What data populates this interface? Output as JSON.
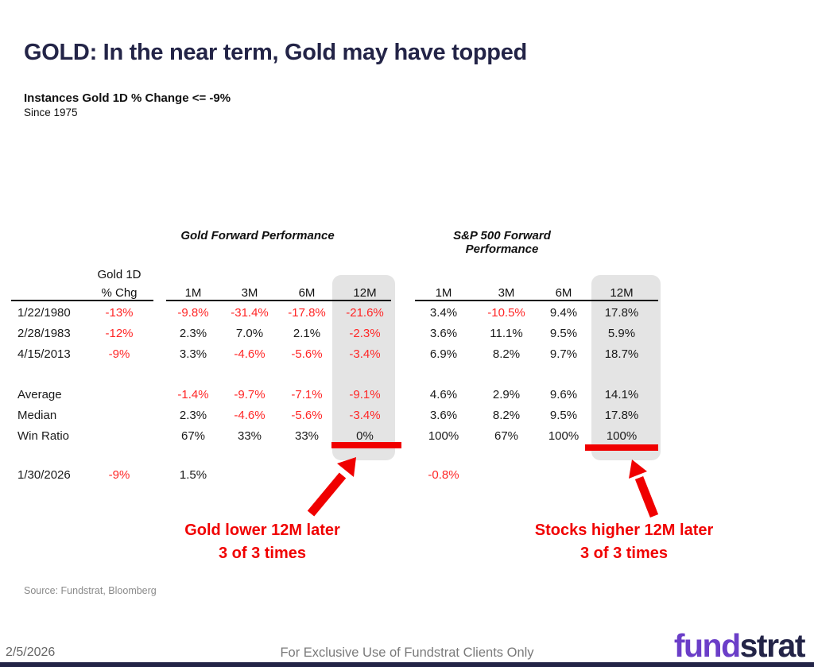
{
  "title": "GOLD: In the near term, Gold may have topped",
  "subtitle": "Instances Gold 1D % Change <= -9%",
  "subtitle2": "Since 1975",
  "table": {
    "corner_header": [
      "Gold 1D",
      "% Chg"
    ],
    "sections": [
      {
        "title": "Gold Forward Performance",
        "columns": [
          "1M",
          "3M",
          "6M",
          "12M"
        ]
      },
      {
        "title": "S&P 500 Forward Performance",
        "columns": [
          "1M",
          "3M",
          "6M",
          "12M"
        ]
      }
    ],
    "highlight_column": "12M",
    "rows": [
      {
        "label": "1/22/1980",
        "chg": "-13%",
        "gold": [
          "-9.8%",
          "-31.4%",
          "-17.8%",
          "-21.6%"
        ],
        "sp": [
          "3.4%",
          "-10.5%",
          "9.4%",
          "17.8%"
        ]
      },
      {
        "label": "2/28/1983",
        "chg": "-12%",
        "gold": [
          "2.3%",
          "7.0%",
          "2.1%",
          "-2.3%"
        ],
        "sp": [
          "3.6%",
          "11.1%",
          "9.5%",
          "5.9%"
        ]
      },
      {
        "label": "4/15/2013",
        "chg": "-9%",
        "gold": [
          "3.3%",
          "-4.6%",
          "-5.6%",
          "-3.4%"
        ],
        "sp": [
          "6.9%",
          "8.2%",
          "9.7%",
          "18.7%"
        ]
      },
      {
        "label": "Average",
        "chg": "",
        "gold": [
          "-1.4%",
          "-9.7%",
          "-7.1%",
          "-9.1%"
        ],
        "sp": [
          "4.6%",
          "2.9%",
          "9.6%",
          "14.1%"
        ]
      },
      {
        "label": "Median",
        "chg": "",
        "gold": [
          "2.3%",
          "-4.6%",
          "-5.6%",
          "-3.4%"
        ],
        "sp": [
          "3.6%",
          "8.2%",
          "9.5%",
          "17.8%"
        ]
      },
      {
        "label": "Win Ratio",
        "chg": "",
        "gold": [
          "67%",
          "33%",
          "33%",
          "0%"
        ],
        "sp": [
          "100%",
          "67%",
          "100%",
          "100%"
        ]
      },
      {
        "label": "1/30/2026",
        "chg": "-9%",
        "gold": [
          "1.5%",
          "",
          "",
          ""
        ],
        "sp": [
          "-0.8%",
          "",
          "",
          ""
        ]
      }
    ]
  },
  "annotations": {
    "gold": {
      "line1": "Gold lower 12M later",
      "line2": "3 of 3 times"
    },
    "stocks": {
      "line1": "Stocks higher 12M later",
      "line2": "3 of 3 times"
    }
  },
  "source": "Source: Fundstrat, Bloomberg",
  "footer": {
    "date": "2/5/2026",
    "disclaimer": "For Exclusive Use of Fundstrat Clients Only",
    "logo_part1": "fund",
    "logo_part2": "strat"
  },
  "colors": {
    "title_navy": "#232447",
    "negative_red": "#ff2626",
    "annotation_red": "#f00000",
    "highlight_gray": "#e4e4e4",
    "logo_purple": "#6b3ec8"
  }
}
